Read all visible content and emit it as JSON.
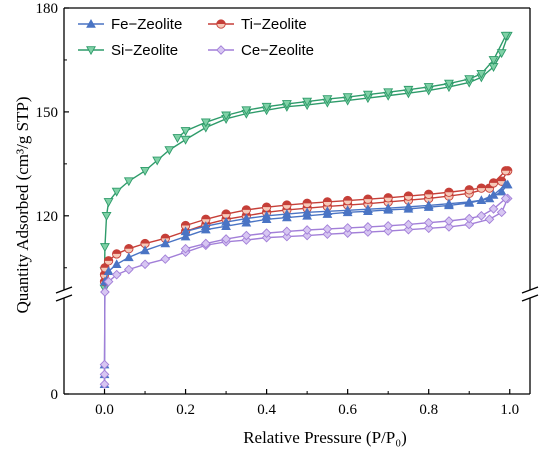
{
  "chart_data": {
    "type": "line",
    "xlabel": "Relative Pressure (P/P₀)",
    "ylabel": "Quantity Adsorbed (cm³/g STP)",
    "xlim": [
      -0.1,
      1.05
    ],
    "x_ticks": [
      "0.0",
      "0.2",
      "0.4",
      "0.6",
      "0.8",
      "1.0"
    ],
    "x_tick_values": [
      0,
      0.2,
      0.4,
      0.6,
      0.8,
      1.0
    ],
    "y_ticks": [
      "0",
      "120",
      "150",
      "180"
    ],
    "y_tick_values": [
      0,
      120,
      150,
      180
    ],
    "axis_break": true,
    "y_segments": {
      "lower": [
        0,
        10
      ],
      "upper": [
        98,
        180
      ]
    },
    "legend_position": "top",
    "series": [
      {
        "name": "Fe−Zeolite",
        "color": "#4a74c4",
        "marker": "triangle-up",
        "x": [
          0.0,
          0.0,
          0.0,
          0.001,
          0.01,
          0.03,
          0.06,
          0.1,
          0.15,
          0.2,
          0.25,
          0.3,
          0.35,
          0.4,
          0.45,
          0.5,
          0.55,
          0.6,
          0.65,
          0.7,
          0.75,
          0.8,
          0.85,
          0.9,
          0.95,
          0.98,
          0.995
        ],
        "y": [
          1.0,
          2.0,
          3.0,
          101,
          104,
          106,
          108,
          110,
          112,
          114,
          116,
          117,
          118,
          119,
          119.5,
          120,
          120.5,
          121,
          121.3,
          121.7,
          122,
          122.5,
          123,
          123.7,
          125,
          127,
          129
        ],
        "desorption_x": [
          0.99,
          0.96,
          0.93,
          0.9,
          0.85,
          0.8,
          0.75,
          0.7,
          0.65,
          0.6,
          0.55,
          0.5,
          0.45,
          0.4,
          0.35,
          0.3,
          0.25,
          0.2
        ],
        "desorption_y": [
          129,
          126,
          124.5,
          124,
          123.5,
          123,
          122.6,
          122.2,
          121.9,
          121.6,
          121.3,
          121,
          120.5,
          120,
          119.2,
          118.2,
          117,
          115.5
        ]
      },
      {
        "name": "Ti−Zeolite",
        "color": "#c63f38",
        "marker": "half-circle",
        "x": [
          0.0,
          0.0,
          0.001,
          0.01,
          0.03,
          0.06,
          0.1,
          0.15,
          0.2,
          0.25,
          0.3,
          0.35,
          0.4,
          0.45,
          0.5,
          0.55,
          0.6,
          0.65,
          0.7,
          0.75,
          0.8,
          0.85,
          0.9,
          0.95,
          0.98,
          0.995
        ],
        "y": [
          101,
          103,
          105,
          107,
          109,
          110.5,
          112,
          113.5,
          115.5,
          117.5,
          119,
          120,
          121,
          121.7,
          122.2,
          122.7,
          123.1,
          123.5,
          124,
          124.5,
          125,
          125.7,
          126.5,
          128,
          130,
          133
        ],
        "desorption_x": [
          0.99,
          0.96,
          0.93,
          0.9,
          0.85,
          0.8,
          0.75,
          0.7,
          0.65,
          0.6,
          0.55,
          0.5,
          0.45,
          0.4,
          0.35,
          0.3,
          0.25,
          0.2
        ],
        "desorption_y": [
          133,
          129.5,
          128,
          127.5,
          126.8,
          126.2,
          125.7,
          125.2,
          124.8,
          124.4,
          124,
          123.6,
          123.1,
          122.5,
          121.7,
          120.5,
          119,
          117.2
        ]
      },
      {
        "name": "Si−Zeolite",
        "color": "#2e9b6a",
        "marker": "triangle-down",
        "x": [
          0.0,
          0.0,
          0.001,
          0.005,
          0.01,
          0.03,
          0.06,
          0.1,
          0.13,
          0.16,
          0.2,
          0.25,
          0.3,
          0.35,
          0.4,
          0.45,
          0.5,
          0.55,
          0.6,
          0.65,
          0.7,
          0.75,
          0.8,
          0.85,
          0.9,
          0.93,
          0.96,
          0.98,
          0.995
        ],
        "y": [
          99,
          104,
          111,
          120,
          124,
          127,
          130,
          133,
          136,
          139,
          142,
          145.5,
          148,
          149.5,
          150.5,
          151.5,
          152,
          152.7,
          153.3,
          154,
          154.7,
          155.4,
          156.2,
          157.2,
          158.5,
          160,
          163,
          167,
          172
        ],
        "desorption_x": [
          0.99,
          0.96,
          0.93,
          0.9,
          0.85,
          0.8,
          0.75,
          0.7,
          0.65,
          0.6,
          0.55,
          0.5,
          0.45,
          0.4,
          0.35,
          0.3,
          0.25,
          0.2,
          0.18
        ],
        "desorption_y": [
          172,
          165,
          161,
          159.5,
          158.2,
          157.2,
          156.4,
          155.7,
          155,
          154.3,
          153.7,
          153,
          152.3,
          151.5,
          150.5,
          149,
          147,
          144.5,
          142.5
        ]
      },
      {
        "name": "Ce−Zeolite",
        "color": "#a27fd8",
        "marker": "diamond",
        "x": [
          0.0,
          0.0,
          0.0,
          0.001,
          0.01,
          0.03,
          0.06,
          0.1,
          0.15,
          0.2,
          0.25,
          0.3,
          0.35,
          0.4,
          0.45,
          0.5,
          0.55,
          0.6,
          0.65,
          0.7,
          0.75,
          0.8,
          0.85,
          0.9,
          0.95,
          0.98,
          0.995
        ],
        "y": [
          1.0,
          2.0,
          3.0,
          98,
          101,
          103,
          104.5,
          106,
          107.5,
          109.5,
          111.5,
          112.5,
          113,
          113.7,
          114,
          114.3,
          114.7,
          115,
          115.3,
          115.6,
          116,
          116.4,
          116.8,
          117.5,
          119,
          121,
          125
        ],
        "desorption_x": [
          0.99,
          0.96,
          0.93,
          0.9,
          0.85,
          0.8,
          0.75,
          0.7,
          0.65,
          0.6,
          0.55,
          0.5,
          0.45,
          0.4,
          0.35,
          0.3,
          0.25,
          0.2
        ],
        "desorption_y": [
          125,
          122,
          120,
          119.2,
          118.5,
          118,
          117.5,
          117.1,
          116.8,
          116.5,
          116.2,
          115.9,
          115.5,
          115,
          114.3,
          113.3,
          112,
          110.5
        ]
      }
    ]
  }
}
